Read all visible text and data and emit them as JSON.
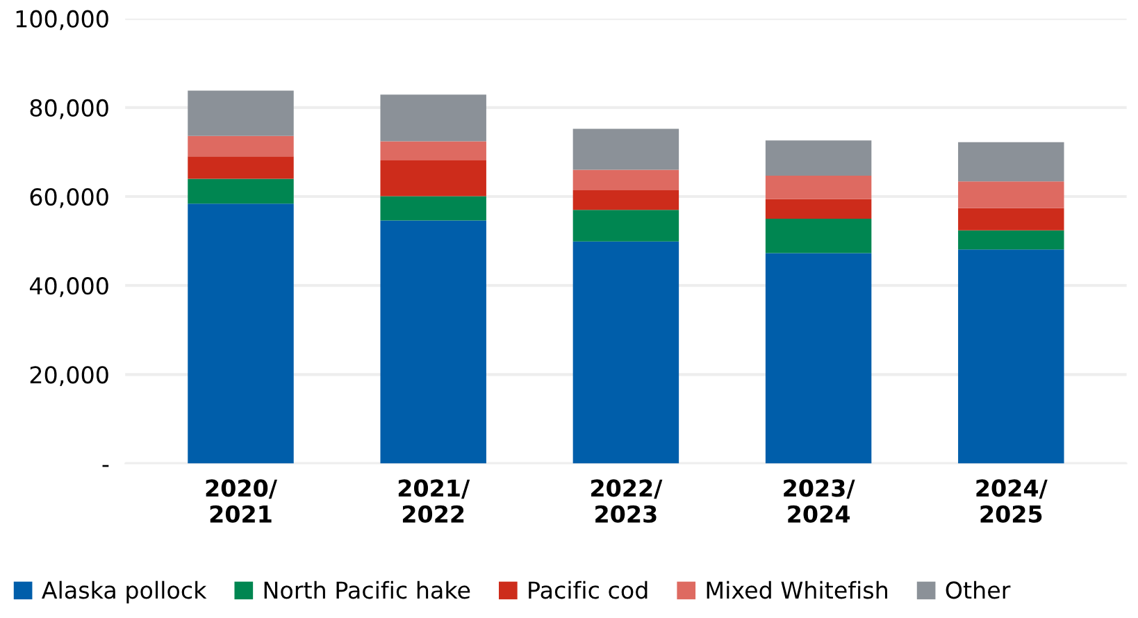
{
  "chart_data": {
    "type": "bar",
    "stacked": true,
    "categories": [
      "2020/\n2021",
      "2021/\n2022",
      "2022/\n2023",
      "2023/\n2024",
      "2024/\n2025"
    ],
    "series": [
      {
        "name": "Alaska pollock",
        "color": "#005eaa",
        "values": [
          58400,
          54600,
          49900,
          47300,
          48100
        ]
      },
      {
        "name": "North Pacific hake",
        "color": "#008651",
        "values": [
          5600,
          5500,
          7100,
          7700,
          4300
        ]
      },
      {
        "name": "Pacific cod",
        "color": "#cd2c1b",
        "values": [
          5000,
          8000,
          4400,
          4400,
          5000
        ]
      },
      {
        "name": "Mixed Whitefish",
        "color": "#de6a61",
        "values": [
          4600,
          4300,
          4600,
          5300,
          6000
        ]
      },
      {
        "name": "Other",
        "color": "#8b9198",
        "values": [
          10200,
          10500,
          9200,
          7900,
          8800
        ]
      }
    ],
    "ylim": [
      0,
      100000
    ],
    "yticks": [
      {
        "value": 0,
        "label": "-"
      },
      {
        "value": 20000,
        "label": "20,000"
      },
      {
        "value": 40000,
        "label": "40,000"
      },
      {
        "value": 60000,
        "label": "60,000"
      },
      {
        "value": 80000,
        "label": "80,000"
      },
      {
        "value": 100000,
        "label": "100,000"
      }
    ],
    "grid": "y",
    "legend": "bottom"
  }
}
